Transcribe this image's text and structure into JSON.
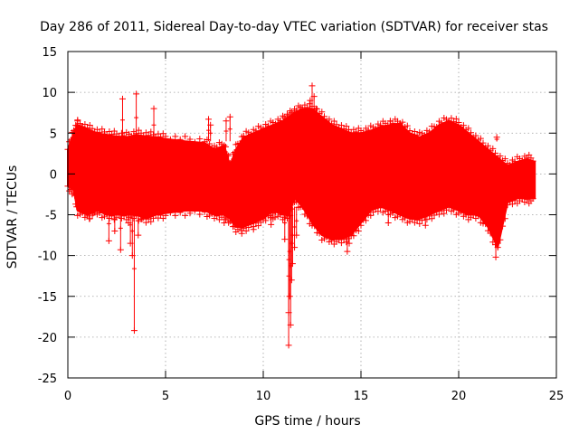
{
  "chart_data": {
    "type": "scatter",
    "title": "Day 286 of 2011, Sidereal Day-to-day VTEC variation (SDTVAR) for receiver stas",
    "xlabel": "GPS time / hours",
    "ylabel": "SDTVAR / TECUs",
    "xlim": [
      0,
      25
    ],
    "ylim": [
      -25,
      15
    ],
    "xticks": [
      0,
      5,
      10,
      15,
      20,
      25
    ],
    "yticks": [
      -25,
      -20,
      -15,
      -10,
      -5,
      0,
      5,
      10,
      15
    ],
    "grid": true,
    "marker": "+",
    "series": [
      {
        "name": "SDTVAR",
        "color": "#ff0000",
        "envelope": {
          "x": [
            0.0,
            0.3,
            0.5,
            1.0,
            1.5,
            2.0,
            2.5,
            3.0,
            3.5,
            4.0,
            4.5,
            5.0,
            6.0,
            7.0,
            7.5,
            8.0,
            8.3,
            8.6,
            9.0,
            9.5,
            10.0,
            10.5,
            11.0,
            11.3,
            11.6,
            12.0,
            12.5,
            13.0,
            13.5,
            14.0,
            14.5,
            15.0,
            15.5,
            16.0,
            16.5,
            17.0,
            17.5,
            18.0,
            18.5,
            19.0,
            19.5,
            20.0,
            20.5,
            21.0,
            21.5,
            22.0,
            22.5,
            23.0,
            23.5,
            23.9
          ],
          "upper": [
            3.0,
            5.0,
            6.0,
            5.5,
            5.0,
            4.8,
            4.6,
            4.5,
            4.8,
            4.6,
            4.5,
            4.3,
            4.0,
            3.8,
            3.0,
            3.5,
            1.0,
            3.0,
            4.5,
            5.0,
            5.5,
            6.0,
            6.5,
            7.0,
            7.5,
            8.0,
            8.0,
            7.0,
            6.0,
            5.5,
            5.0,
            5.0,
            5.3,
            5.8,
            6.0,
            6.2,
            5.0,
            4.5,
            5.0,
            6.0,
            6.5,
            6.0,
            5.0,
            4.0,
            3.0,
            2.0,
            1.0,
            1.5,
            1.8,
            1.5
          ],
          "lower": [
            -1.5,
            -2.0,
            -4.5,
            -5.0,
            -4.5,
            -5.0,
            -5.0,
            -5.0,
            -5.0,
            -5.5,
            -5.0,
            -4.8,
            -4.5,
            -4.5,
            -5.0,
            -5.0,
            -5.5,
            -6.5,
            -6.5,
            -6.0,
            -5.5,
            -4.5,
            -5.0,
            -5.0,
            -3.0,
            -4.0,
            -6.0,
            -7.5,
            -8.0,
            -8.0,
            -7.5,
            -6.0,
            -4.5,
            -4.0,
            -4.5,
            -5.0,
            -5.5,
            -5.5,
            -5.0,
            -4.5,
            -4.0,
            -4.5,
            -5.0,
            -5.0,
            -6.5,
            -9.0,
            -3.5,
            -3.0,
            -3.0,
            -3.0
          ]
        },
        "outliers": {
          "x": [
            0.5,
            0.7,
            1.1,
            1.3,
            2.1,
            2.4,
            2.7,
            2.8,
            3.1,
            3.2,
            3.3,
            3.4,
            3.5,
            3.6,
            3.8,
            4.4,
            7.2,
            7.3,
            8.0,
            8.1,
            8.3,
            8.9,
            9.2,
            9.5,
            10.0,
            10.4,
            10.5,
            10.6,
            11.1,
            11.3,
            11.3,
            11.35,
            11.4,
            11.45,
            11.5,
            11.6,
            11.7,
            12.4,
            12.5,
            12.6,
            12.7,
            13.0,
            14.3,
            14.4,
            16.4,
            16.5,
            18.0,
            18.3,
            20.5,
            21.9,
            21.95,
            22.0
          ],
          "y": [
            6.5,
            5.8,
            -5.5,
            -4.8,
            -8.2,
            -7.0,
            -9.3,
            9.2,
            -6.0,
            -8.5,
            -10.0,
            -19.2,
            9.8,
            -7.5,
            -5.5,
            8.0,
            6.7,
            6.0,
            -6.0,
            6.5,
            7.0,
            -7.3,
            -4.8,
            -6.8,
            5.5,
            -6.2,
            -5.5,
            -5.3,
            -8.0,
            -17.0,
            -21.0,
            -15.0,
            -18.5,
            -13.0,
            -11.0,
            -9.0,
            -7.5,
            9.0,
            10.8,
            9.5,
            8.0,
            -7.0,
            -9.5,
            -8.5,
            -6.0,
            6.5,
            -5.0,
            -6.3,
            -5.0,
            -10.2,
            4.5,
            -8.5
          ]
        }
      }
    ]
  }
}
